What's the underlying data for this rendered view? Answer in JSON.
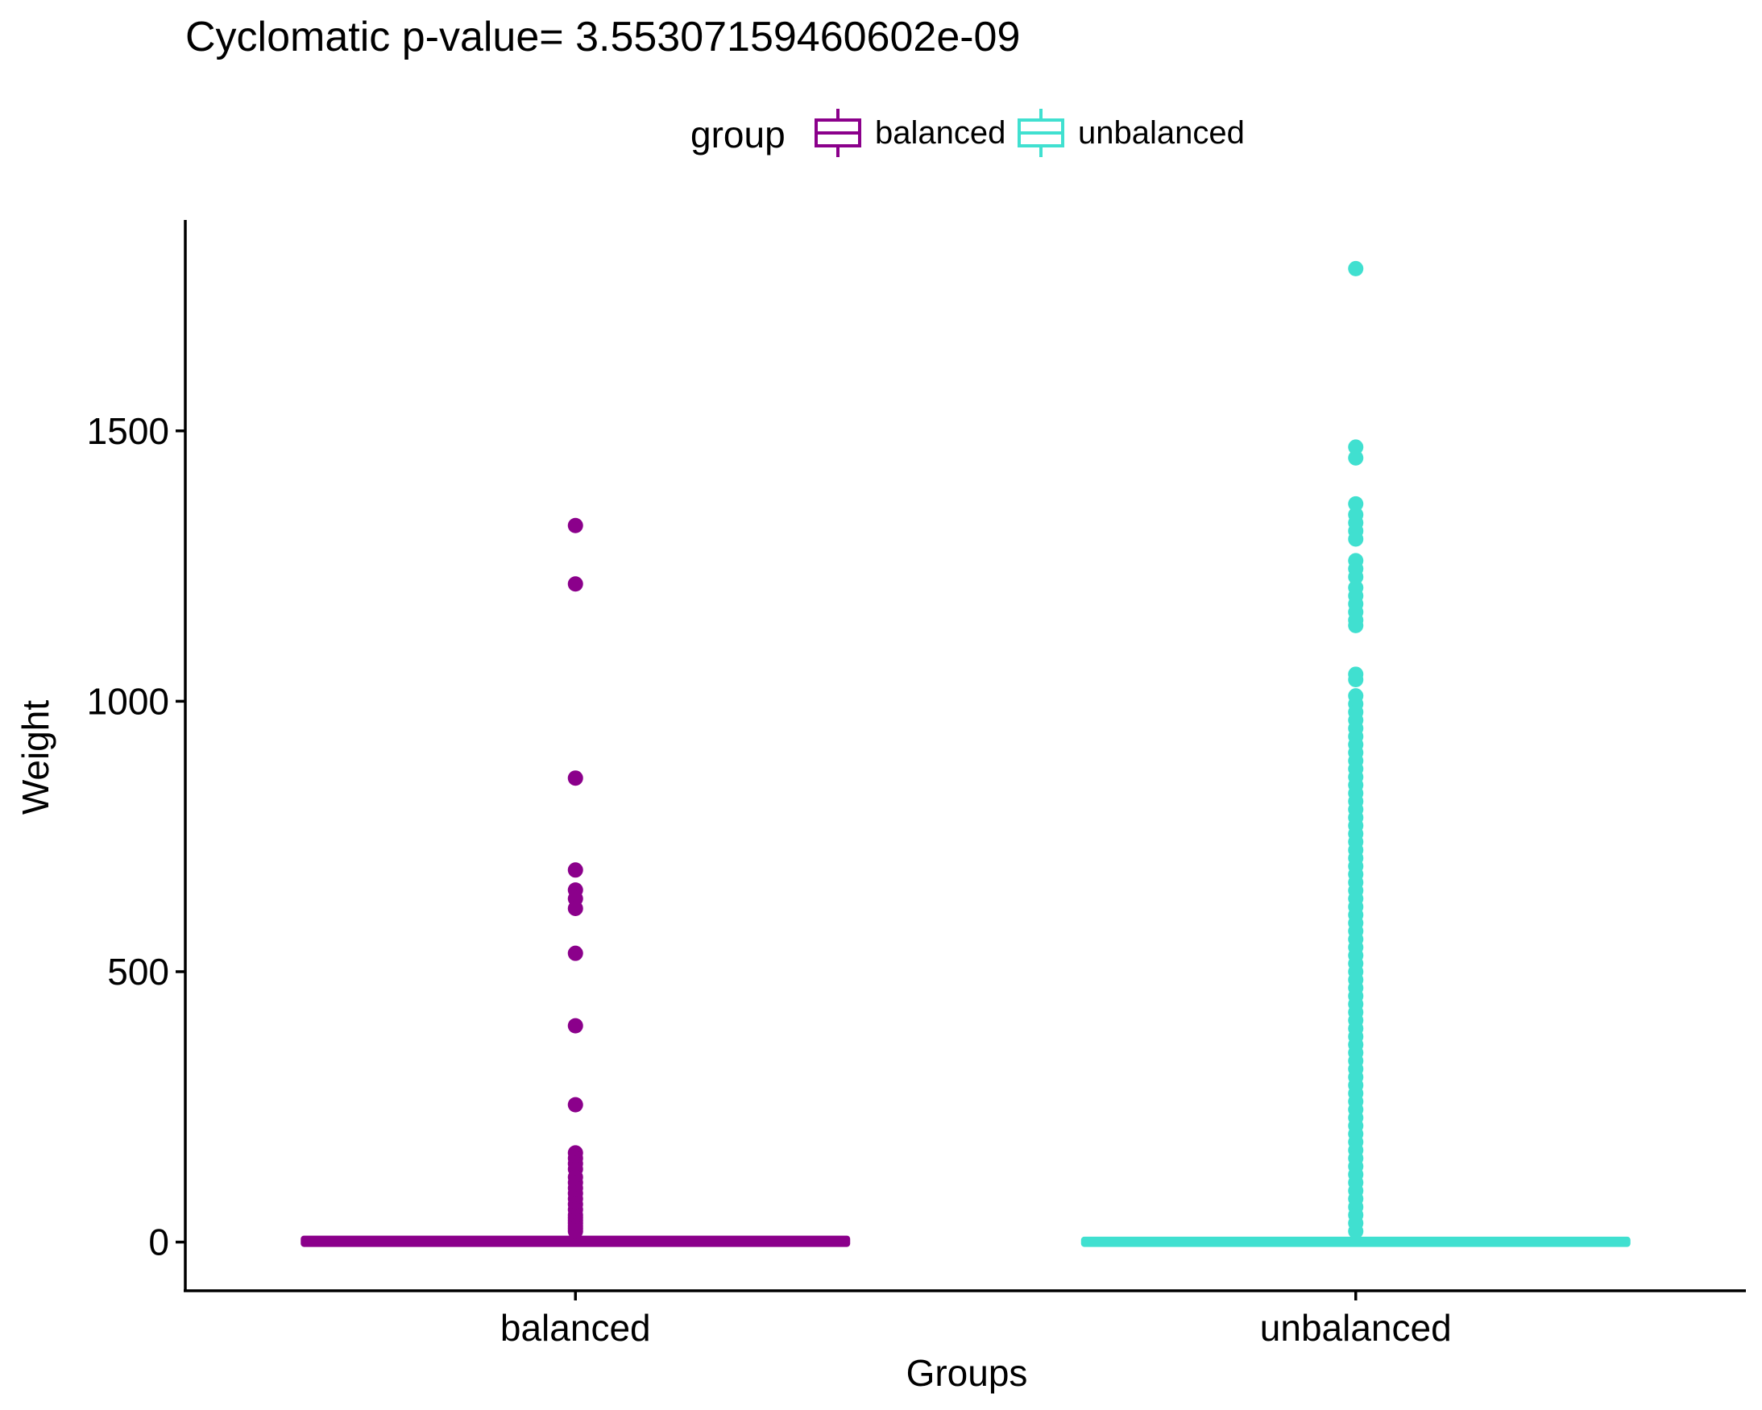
{
  "chart_data": {
    "type": "box",
    "title": "Cyclomatic  p-value= 3.55307159460602e-09",
    "xlabel": "Groups",
    "ylabel": "Weight",
    "ylim": [
      -90,
      1890
    ],
    "yticks": [
      0,
      500,
      1000,
      1500
    ],
    "grid": false,
    "legend": {
      "title": "group",
      "position": "top",
      "entries": [
        {
          "name": "balanced",
          "color": "#8B008B"
        },
        {
          "name": "unbalanced",
          "color": "#40E0D0"
        }
      ]
    },
    "categories": [
      "balanced",
      "unbalanced"
    ],
    "series": [
      {
        "name": "balanced",
        "color": "#8B008B",
        "box": {
          "min": 0,
          "q1": 0,
          "median": 0,
          "q3": 3,
          "max": 6
        },
        "outliers": [
          1325,
          1217,
          858,
          688,
          651,
          635,
          617,
          534,
          400,
          254,
          165,
          155,
          145,
          135,
          120,
          110,
          100,
          90,
          80,
          70,
          60,
          50,
          45,
          40,
          35,
          30,
          25,
          20
        ]
      },
      {
        "name": "unbalanced",
        "color": "#40E0D0",
        "box": {
          "min": 0,
          "q1": 0,
          "median": 0,
          "q3": 1,
          "max": 3
        },
        "outliers": [
          1800,
          1470,
          1450,
          1365,
          1345,
          1330,
          1315,
          1300,
          1260,
          1245,
          1230,
          1210,
          1195,
          1180,
          1165,
          1150,
          1140,
          1050,
          1040,
          1010,
          995,
          980,
          965,
          950,
          935,
          920,
          905,
          890,
          875,
          860,
          845,
          830,
          815,
          800,
          785,
          770,
          755,
          740,
          725,
          710,
          695,
          680,
          665,
          650,
          635,
          620,
          605,
          590,
          575,
          560,
          545,
          530,
          515,
          500,
          485,
          470,
          455,
          440,
          425,
          410,
          395,
          380,
          365,
          350,
          335,
          320,
          305,
          290,
          275,
          260,
          245,
          230,
          215,
          200,
          185,
          170,
          155,
          140,
          125,
          110,
          95,
          80,
          65,
          50,
          35,
          20
        ]
      }
    ]
  }
}
